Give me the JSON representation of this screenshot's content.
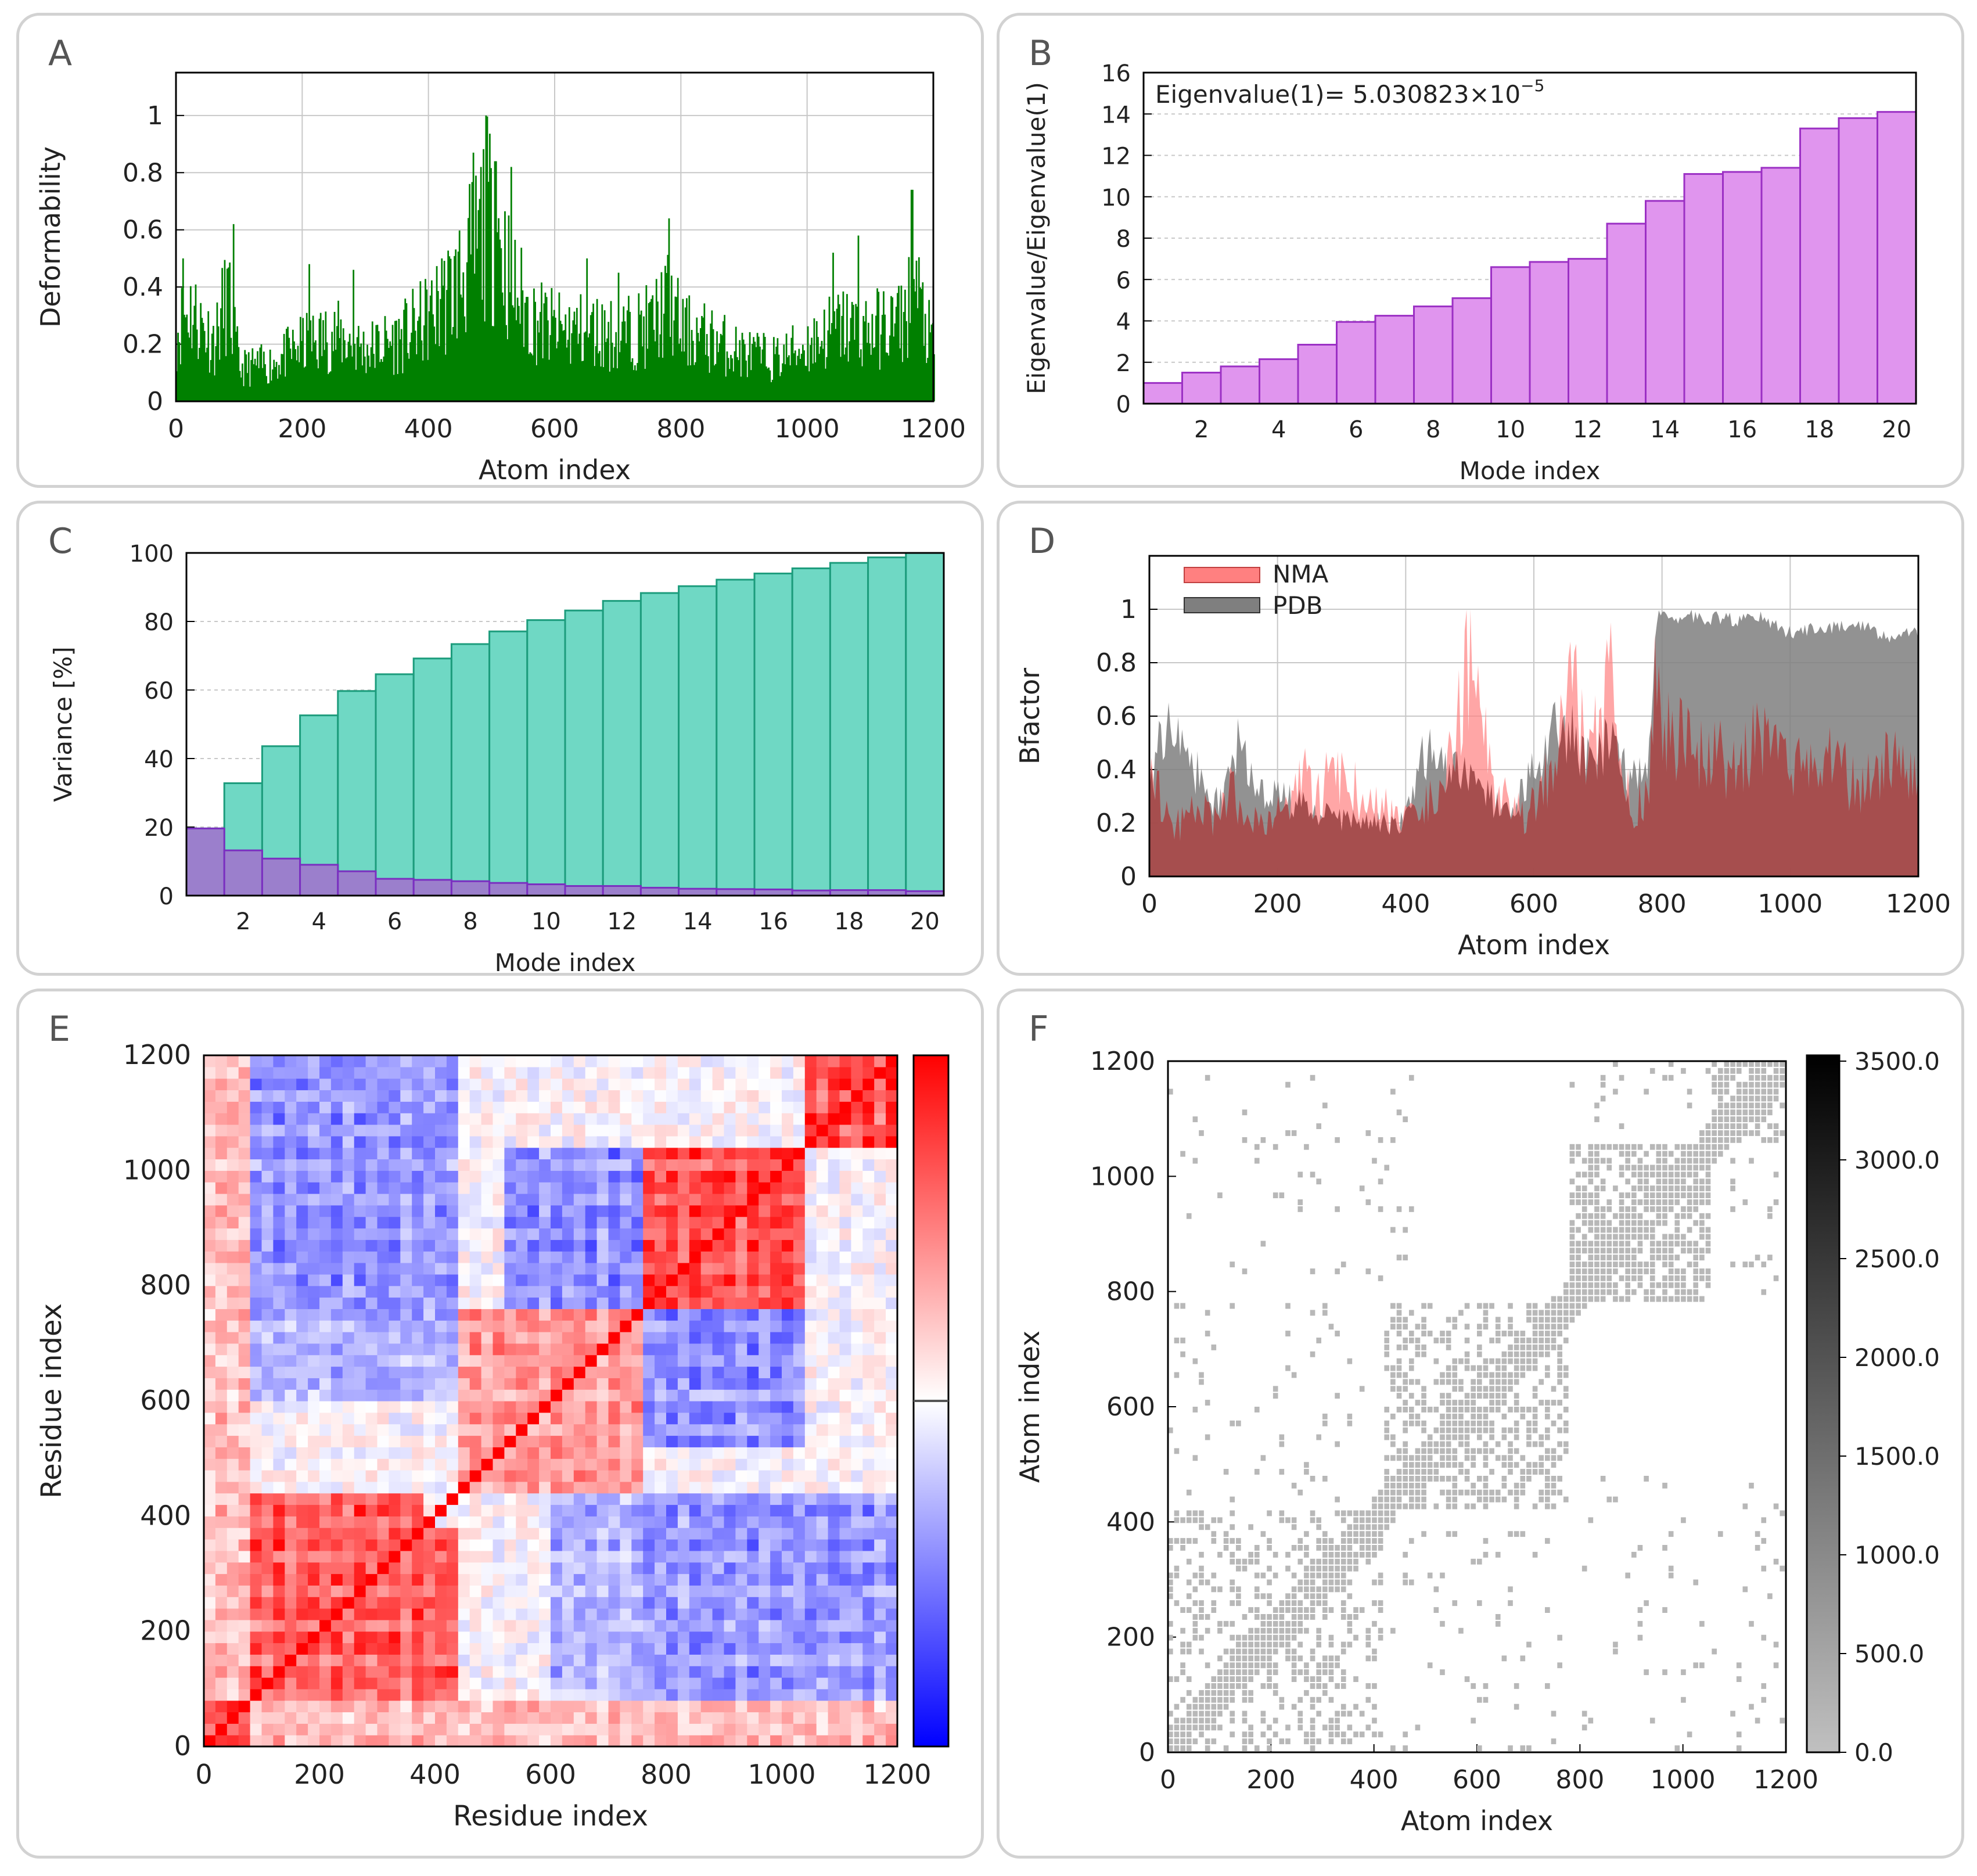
{
  "panels": {
    "A": "A",
    "B": "B",
    "C": "C",
    "D": "D",
    "E": "E",
    "F": "F"
  },
  "chart_data": [
    {
      "panel": "A",
      "type": "bar",
      "xlabel": "Atom index",
      "ylabel": "Deformability",
      "xlim": [
        0,
        1200
      ],
      "ylim": [
        0,
        1.15
      ],
      "xticks": [
        "0",
        "200",
        "400",
        "600",
        "800",
        "1000",
        "1200"
      ],
      "yticks": [
        "0",
        "0.2",
        "0.4",
        "0.6",
        "0.8",
        "1"
      ],
      "color": "#008000",
      "grid": true,
      "profile": [
        [
          0,
          0.3
        ],
        [
          20,
          0.4
        ],
        [
          40,
          0.32
        ],
        [
          60,
          0.25
        ],
        [
          80,
          0.45
        ],
        [
          100,
          0.14
        ],
        [
          150,
          0.16
        ],
        [
          200,
          0.24
        ],
        [
          250,
          0.28
        ],
        [
          300,
          0.22
        ],
        [
          350,
          0.26
        ],
        [
          400,
          0.35
        ],
        [
          440,
          0.48
        ],
        [
          470,
          0.62
        ],
        [
          490,
          0.78
        ],
        [
          510,
          0.7
        ],
        [
          530,
          0.5
        ],
        [
          560,
          0.36
        ],
        [
          600,
          0.3
        ],
        [
          650,
          0.3
        ],
        [
          700,
          0.28
        ],
        [
          750,
          0.32
        ],
        [
          780,
          0.42
        ],
        [
          800,
          0.3
        ],
        [
          850,
          0.26
        ],
        [
          900,
          0.2
        ],
        [
          950,
          0.18
        ],
        [
          1000,
          0.24
        ],
        [
          1050,
          0.32
        ],
        [
          1100,
          0.3
        ],
        [
          1150,
          0.34
        ],
        [
          1170,
          0.48
        ],
        [
          1200,
          0.2
        ]
      ],
      "peaks": [
        [
          10,
          0.5
        ],
        [
          90,
          0.62
        ],
        [
          210,
          0.48
        ],
        [
          280,
          0.46
        ],
        [
          420,
          0.5
        ],
        [
          470,
          0.87
        ],
        [
          490,
          1.0
        ],
        [
          505,
          0.84
        ],
        [
          530,
          0.82
        ],
        [
          650,
          0.5
        ],
        [
          700,
          0.45
        ],
        [
          780,
          0.64
        ],
        [
          1040,
          0.52
        ],
        [
          1080,
          0.58
        ],
        [
          1165,
          0.74
        ]
      ]
    },
    {
      "panel": "B",
      "type": "bar",
      "xlabel": "Mode index",
      "ylabel": "Eigenvalue/Eigenvalue(1)",
      "annotation_text": "Eigenvalue(1)= 5.030823×10",
      "annotation_exponent": "−5",
      "xlim": [
        0.5,
        20.5
      ],
      "ylim": [
        0,
        16
      ],
      "xticks": [
        "2",
        "4",
        "6",
        "8",
        "10",
        "12",
        "14",
        "16",
        "18",
        "20"
      ],
      "yticks": [
        "0",
        "2",
        "4",
        "6",
        "8",
        "10",
        "12",
        "14",
        "16"
      ],
      "categories": [
        1,
        2,
        3,
        4,
        5,
        6,
        7,
        8,
        9,
        10,
        11,
        12,
        13,
        14,
        15,
        16,
        17,
        18,
        19,
        20
      ],
      "values": [
        1.0,
        1.5,
        1.8,
        2.15,
        2.85,
        3.95,
        4.25,
        4.7,
        5.1,
        6.6,
        6.85,
        7.0,
        8.7,
        9.8,
        11.1,
        11.2,
        11.4,
        13.3,
        13.8,
        14.1
      ],
      "color": "#e095ee",
      "edge": "#9b30c4",
      "grid": "horizontal-dashed"
    },
    {
      "panel": "C",
      "type": "bar",
      "xlabel": "Mode index",
      "ylabel": "Variance [%]",
      "xlim": [
        0.5,
        20.5
      ],
      "ylim": [
        0,
        100
      ],
      "xticks": [
        "2",
        "4",
        "6",
        "8",
        "10",
        "12",
        "14",
        "16",
        "18",
        "20"
      ],
      "yticks": [
        "0",
        "20",
        "40",
        "60",
        "80",
        "100"
      ],
      "categories": [
        1,
        2,
        3,
        4,
        5,
        6,
        7,
        8,
        9,
        10,
        11,
        12,
        13,
        14,
        15,
        16,
        17,
        18,
        19,
        20
      ],
      "series": [
        {
          "values": [
            19.6,
            32.8,
            43.6,
            52.6,
            59.7,
            64.6,
            69.2,
            73.4,
            77.1,
            80.4,
            83.2,
            86.0,
            88.3,
            90.3,
            92.2,
            94.0,
            95.5,
            97.1,
            98.7,
            100.0
          ],
          "color": "#6fd8c4",
          "edge": "#1c9c7c"
        },
        {
          "values": [
            19.6,
            13.2,
            10.8,
            9.0,
            7.1,
            4.9,
            4.6,
            4.2,
            3.7,
            3.3,
            2.8,
            2.8,
            2.3,
            2.0,
            1.9,
            1.8,
            1.5,
            1.6,
            1.6,
            1.3
          ],
          "color": "#9b7fcc",
          "edge": "#7a2fc0"
        }
      ],
      "grid": "horizontal-dashed"
    },
    {
      "panel": "D",
      "type": "area",
      "xlabel": "Atom index",
      "ylabel": "Bfactor",
      "xlim": [
        0,
        1200
      ],
      "ylim": [
        0,
        1.2
      ],
      "xticks": [
        "0",
        "200",
        "400",
        "600",
        "800",
        "1000",
        "1200"
      ],
      "yticks": [
        "0",
        "0.2",
        "0.4",
        "0.6",
        "0.8",
        "1"
      ],
      "legend_position": "top-left",
      "series": [
        {
          "name": "NMA",
          "color": "#ff8080",
          "x": [
            0,
            20,
            40,
            60,
            80,
            100,
            120,
            140,
            160,
            180,
            200,
            220,
            240,
            260,
            280,
            300,
            320,
            340,
            360,
            380,
            400,
            420,
            440,
            460,
            480,
            500,
            520,
            540,
            560,
            580,
            600,
            620,
            640,
            660,
            680,
            700,
            720,
            740,
            760,
            780,
            790,
            800,
            850,
            900,
            950,
            1000,
            1050,
            1100,
            1150,
            1200
          ],
          "y": [
            0.62,
            0.3,
            0.22,
            0.25,
            0.3,
            0.24,
            0.38,
            0.32,
            0.22,
            0.26,
            0.28,
            0.3,
            0.44,
            0.36,
            0.42,
            0.44,
            0.38,
            0.3,
            0.3,
            0.28,
            0.24,
            0.25,
            0.38,
            0.5,
            0.62,
            0.98,
            0.64,
            0.42,
            0.3,
            0.28,
            0.3,
            0.42,
            0.55,
            0.98,
            0.5,
            0.62,
            0.9,
            0.4,
            0.3,
            0.42,
            0.96,
            0.65,
            0.56,
            0.5,
            0.6,
            0.44,
            0.58,
            0.4,
            0.52,
            0.46
          ]
        },
        {
          "name": "PDB",
          "color": "#7f7f7f",
          "x": [
            0,
            20,
            40,
            60,
            80,
            100,
            120,
            140,
            160,
            180,
            200,
            220,
            240,
            260,
            280,
            300,
            320,
            340,
            360,
            380,
            400,
            420,
            440,
            460,
            480,
            500,
            520,
            540,
            560,
            580,
            600,
            620,
            640,
            660,
            680,
            700,
            720,
            740,
            760,
            780,
            790,
            800,
            850,
            900,
            950,
            1000,
            1050,
            1100,
            1150,
            1200
          ],
          "y": [
            0.42,
            0.55,
            0.68,
            0.5,
            0.38,
            0.3,
            0.35,
            0.58,
            0.4,
            0.3,
            0.32,
            0.3,
            0.28,
            0.26,
            0.24,
            0.22,
            0.24,
            0.24,
            0.22,
            0.22,
            0.22,
            0.48,
            0.5,
            0.46,
            0.44,
            0.38,
            0.34,
            0.3,
            0.3,
            0.34,
            0.42,
            0.5,
            0.62,
            0.56,
            0.45,
            0.5,
            0.55,
            0.45,
            0.4,
            0.46,
            0.98,
            0.98,
            0.98,
            0.97,
            0.98,
            0.92,
            0.94,
            0.96,
            0.9,
            0.92
          ]
        }
      ],
      "overlap_color": "#a04848",
      "grid": true
    },
    {
      "panel": "E",
      "type": "heatmap",
      "xlabel": "Residue index",
      "ylabel": "Residue index",
      "xlim": [
        0,
        1200
      ],
      "ylim": [
        0,
        1200
      ],
      "xticks": [
        "0",
        "200",
        "400",
        "600",
        "800",
        "1000",
        "1200"
      ],
      "yticks": [
        "0",
        "200",
        "400",
        "600",
        "800",
        "1000",
        "1200"
      ],
      "colorbar": [
        "#0000ff",
        "#ffffff",
        "#ff0000"
      ],
      "blocks": [
        {
          "x0": 0,
          "x1": 380,
          "y0": 80,
          "y1": 440,
          "value": 0.85
        },
        {
          "x0": 0,
          "x1": 80,
          "y0": 0,
          "y1": 80,
          "value": 0.95
        },
        {
          "x0": 520,
          "x1": 1050,
          "y0": 770,
          "y1": 1050,
          "value": -0.6
        },
        {
          "x0": 770,
          "x1": 1050,
          "y0": 770,
          "y1": 1050,
          "value": 0.95
        },
        {
          "x0": 1050,
          "x1": 1200,
          "y0": 1050,
          "y1": 1200,
          "value": 0.95
        },
        {
          "x0": 80,
          "x1": 450,
          "y0": 800,
          "y1": 1050,
          "value": -0.55
        },
        {
          "x0": 770,
          "x1": 1200,
          "y0": 80,
          "y1": 450,
          "value": -0.55
        },
        {
          "x0": 450,
          "x1": 770,
          "y0": 450,
          "y1": 770,
          "value": 0.55
        },
        {
          "x0": 0,
          "x1": 450,
          "y0": 600,
          "y1": 760,
          "value": -0.35
        },
        {
          "x0": 600,
          "x1": 760,
          "y0": 0,
          "y1": 450,
          "value": -0.4
        },
        {
          "x0": 0,
          "x1": 80,
          "y0": 80,
          "y1": 1200,
          "value": 0.35
        }
      ]
    },
    {
      "panel": "F",
      "type": "scatter",
      "xlabel": "Atom index",
      "ylabel": "Atom index",
      "xlim": [
        0,
        1200
      ],
      "ylim": [
        0,
        1200
      ],
      "xticks": [
        "0",
        "200",
        "400",
        "600",
        "800",
        "1000",
        "1200"
      ],
      "yticks": [
        "0",
        "200",
        "400",
        "600",
        "800",
        "1000",
        "1200"
      ],
      "colorbar_ticks": [
        "0.0",
        "500.0",
        "1000.0",
        "1500.0",
        "2000.0",
        "2500.0",
        "3000.0",
        "3500.0"
      ],
      "colorbar_range": [
        0,
        3500
      ],
      "point_color": "#b8b8b8",
      "clusters": [
        {
          "x0": 0,
          "x1": 420,
          "y0": 0,
          "y1": 420,
          "density": 0.35
        },
        {
          "x0": 420,
          "x1": 780,
          "y0": 420,
          "y1": 780,
          "density": 0.45
        },
        {
          "x0": 780,
          "x1": 1050,
          "y0": 780,
          "y1": 1050,
          "density": 0.75
        },
        {
          "x0": 1050,
          "x1": 1200,
          "y0": 1050,
          "y1": 1200,
          "density": 0.6
        },
        {
          "x0": 0,
          "x1": 380,
          "y0": 430,
          "y1": 780,
          "density": 0.06
        },
        {
          "x0": 430,
          "x1": 780,
          "y0": 0,
          "y1": 380,
          "density": 0.06
        },
        {
          "x0": 0,
          "x1": 480,
          "y0": 1000,
          "y1": 1200,
          "density": 0.05
        },
        {
          "x0": 800,
          "x1": 1200,
          "y0": 0,
          "y1": 480,
          "density": 0.05
        },
        {
          "x0": 780,
          "x1": 1060,
          "y0": 1100,
          "y1": 1200,
          "density": 0.1
        },
        {
          "x0": 1080,
          "x1": 1200,
          "y0": 800,
          "y1": 1080,
          "density": 0.1
        }
      ]
    }
  ]
}
